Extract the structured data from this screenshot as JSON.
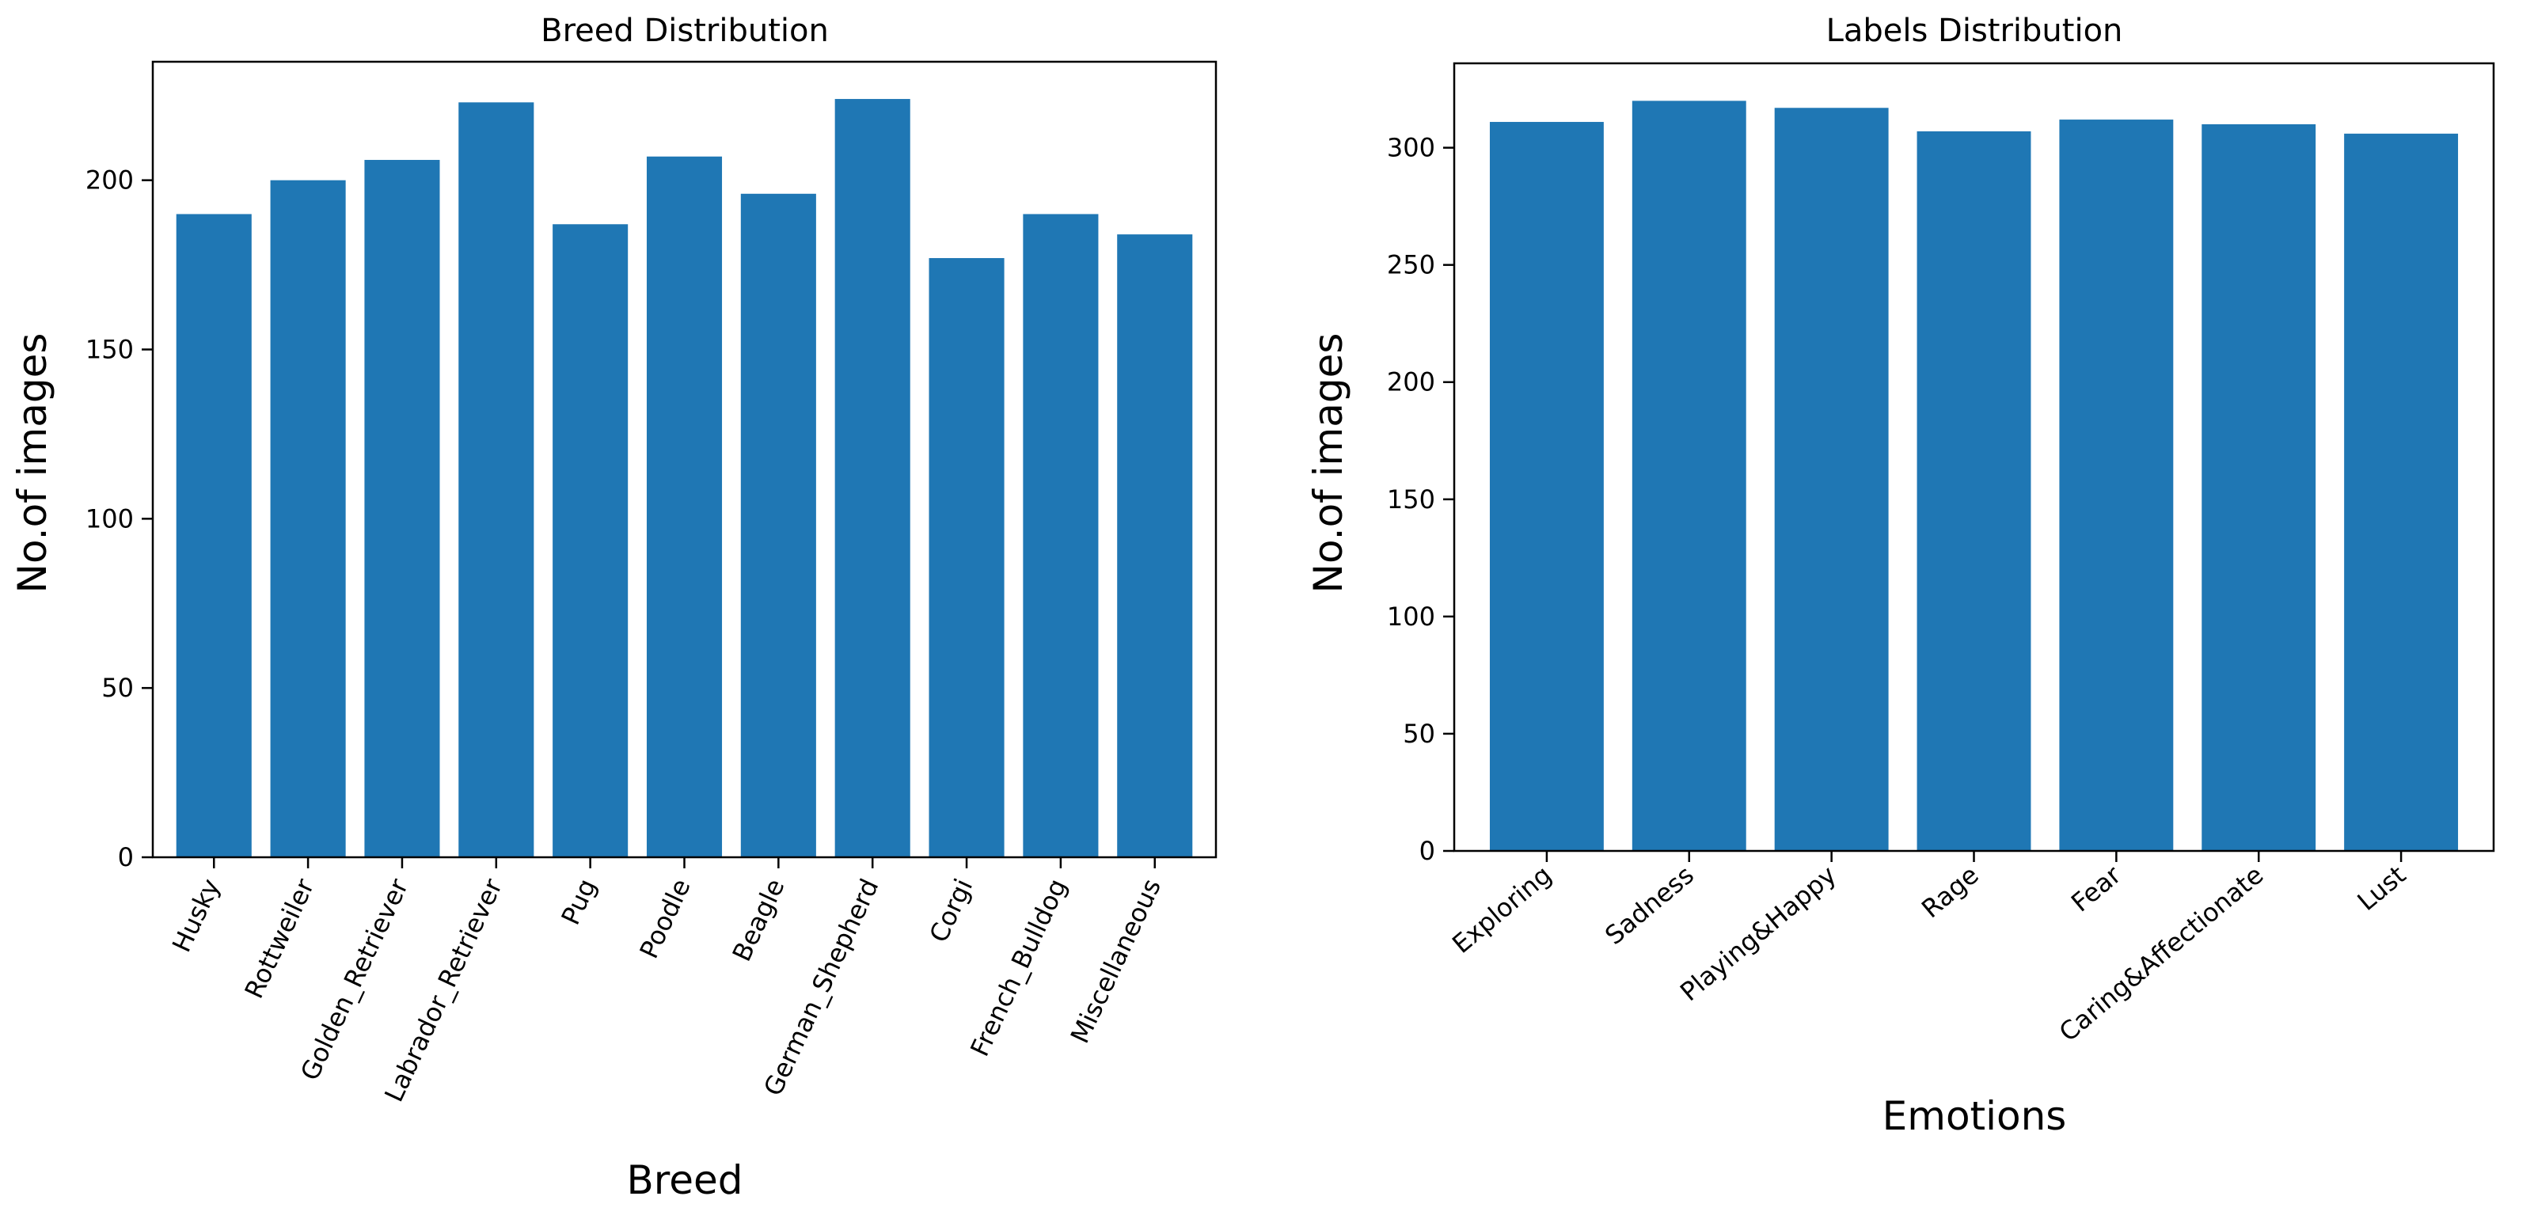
{
  "chart_data": [
    {
      "type": "bar",
      "title": "Breed Distribution",
      "xlabel": "Breed",
      "ylabel": "No.of images",
      "categories": [
        "Husky",
        "Rottweiler",
        "Golden_Retriever",
        "Labrador_Retriever",
        "Pug",
        "Poodle",
        "Beagle",
        "German_Shepherd",
        "Corgi",
        "French_Bulldog",
        "Miscellaneous"
      ],
      "values": [
        190,
        200,
        206,
        223,
        187,
        207,
        196,
        224,
        177,
        190,
        184
      ],
      "yticks": [
        0,
        50,
        100,
        150,
        200
      ],
      "ylim": [
        0,
        235
      ],
      "color": "#1f77b4",
      "grid": false
    },
    {
      "type": "bar",
      "title": "Labels Distribution",
      "xlabel": "Emotions",
      "ylabel": "No.of images",
      "categories": [
        "Exploring",
        "Sadness",
        "Playing&Happy",
        "Rage",
        "Fear",
        "Caring&Affectionate",
        "Lust"
      ],
      "values": [
        311,
        320,
        317,
        307,
        312,
        310,
        306
      ],
      "yticks": [
        0,
        50,
        100,
        150,
        200,
        250,
        300
      ],
      "ylim": [
        0,
        336
      ],
      "color": "#1f77b4",
      "grid": false
    }
  ]
}
